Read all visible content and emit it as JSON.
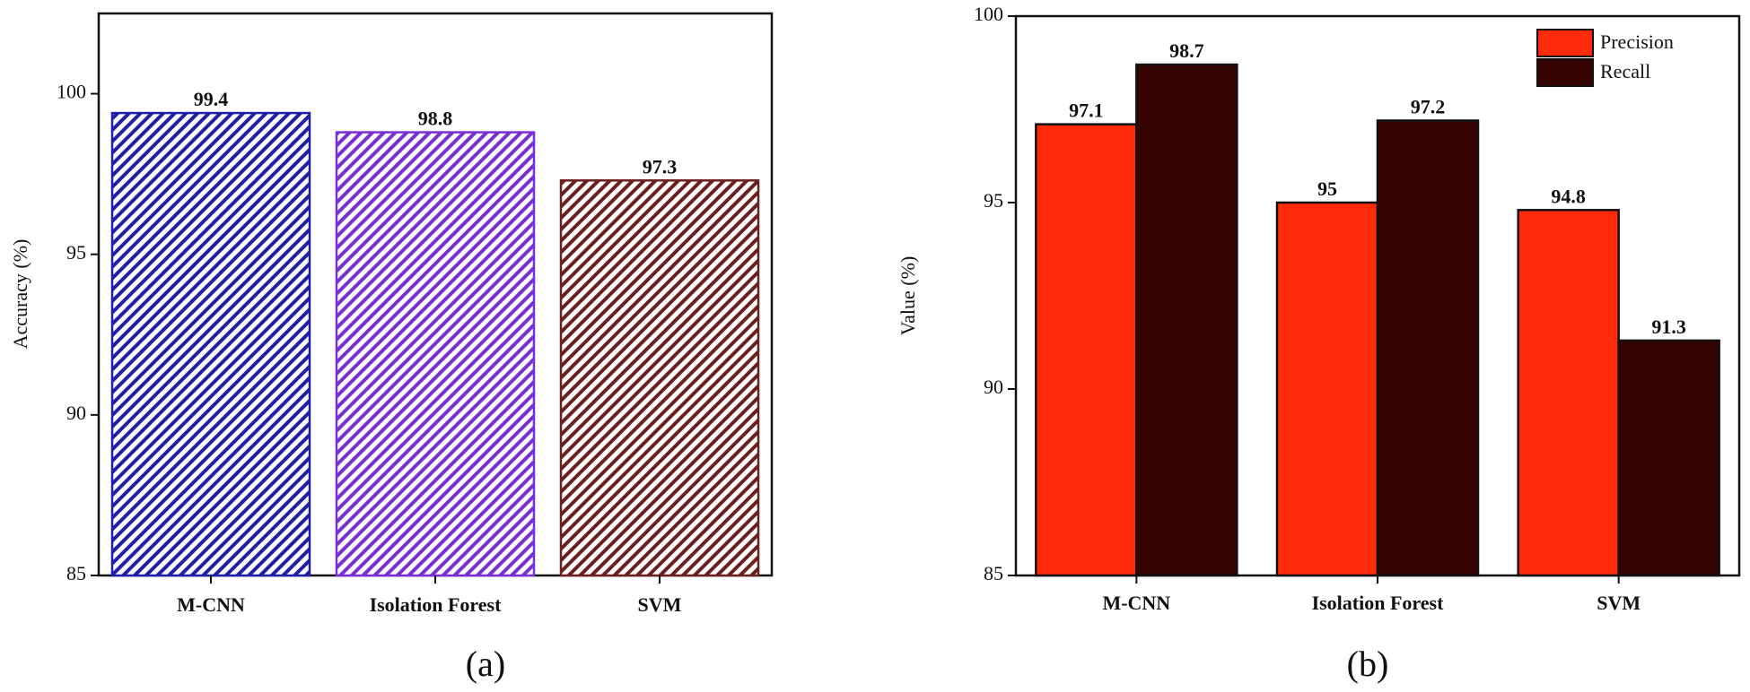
{
  "chart_data": [
    {
      "type": "bar",
      "panel_label": "(a)",
      "title": "",
      "xlabel": "",
      "ylabel": "Accuracy (%)",
      "ylim": [
        85,
        102.5
      ],
      "yticks": [
        85,
        90,
        95,
        100
      ],
      "categories": [
        "M-CNN",
        "Isolation Forest",
        "SVM"
      ],
      "values": [
        99.4,
        98.8,
        97.3
      ],
      "data_labels": [
        "99.4",
        "98.8",
        "97.3"
      ],
      "colors": [
        "#1f1fa8",
        "#7a2fd6",
        "#6b2020"
      ],
      "fill": "hatched",
      "legend": null
    },
    {
      "type": "bar",
      "panel_label": "(b)",
      "title": "",
      "xlabel": "",
      "ylabel": "Value (%)",
      "ylim": [
        85,
        100
      ],
      "yticks": [
        85,
        90,
        95,
        100
      ],
      "categories": [
        "M-CNN",
        "Isolation Forest",
        "SVM"
      ],
      "series": [
        {
          "name": "Precision",
          "values": [
            97.1,
            95,
            94.8
          ],
          "data_labels": [
            "97.1",
            "95",
            "94.8"
          ],
          "color": "#ff2a0a"
        },
        {
          "name": "Recall",
          "values": [
            98.7,
            97.2,
            91.3
          ],
          "data_labels": [
            "98.7",
            "97.2",
            "91.3"
          ],
          "color": "#350202"
        }
      ],
      "legend": "top-right"
    }
  ]
}
